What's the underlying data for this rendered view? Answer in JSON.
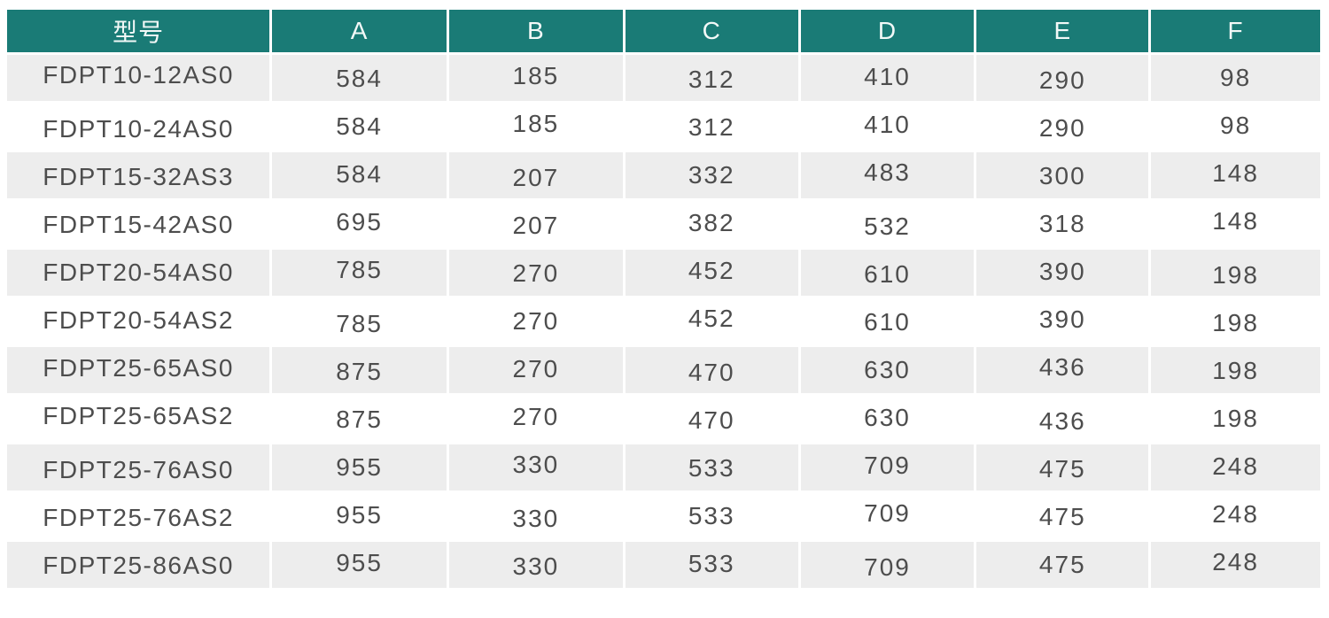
{
  "chart_data": {
    "type": "table",
    "columns": [
      "型号",
      "A",
      "B",
      "C",
      "D",
      "E",
      "F"
    ],
    "rows": [
      [
        "FDPT10-12AS0",
        584,
        185,
        312,
        410,
        290,
        98
      ],
      [
        "FDPT10-24AS0",
        584,
        185,
        312,
        410,
        290,
        98
      ],
      [
        "FDPT15-32AS3",
        584,
        207,
        332,
        483,
        300,
        148
      ],
      [
        "FDPT15-42AS0",
        695,
        207,
        382,
        532,
        318,
        148
      ],
      [
        "FDPT20-54AS0",
        785,
        270,
        452,
        610,
        390,
        198
      ],
      [
        "FDPT20-54AS2",
        785,
        270,
        452,
        610,
        390,
        198
      ],
      [
        "FDPT25-65AS0",
        875,
        270,
        470,
        630,
        436,
        198
      ],
      [
        "FDPT25-65AS2",
        875,
        270,
        470,
        630,
        436,
        198
      ],
      [
        "FDPT25-76AS0",
        955,
        330,
        533,
        709,
        475,
        248
      ],
      [
        "FDPT25-76AS2",
        955,
        330,
        533,
        709,
        475,
        248
      ],
      [
        "FDPT25-86AS0",
        955,
        330,
        533,
        709,
        475,
        248
      ]
    ],
    "layout": {
      "header_row": true,
      "striped_rows": "odd-gray",
      "gridlines": "white-gutters"
    }
  },
  "colors": {
    "header_bg": "#1A7B76",
    "header_text": "#F2F8F7",
    "row_stripe_bg": "#EDEDED",
    "row_plain_bg": "#FFFFFF",
    "cell_text": "#4D4D4D",
    "gutter": "#FFFFFF"
  }
}
